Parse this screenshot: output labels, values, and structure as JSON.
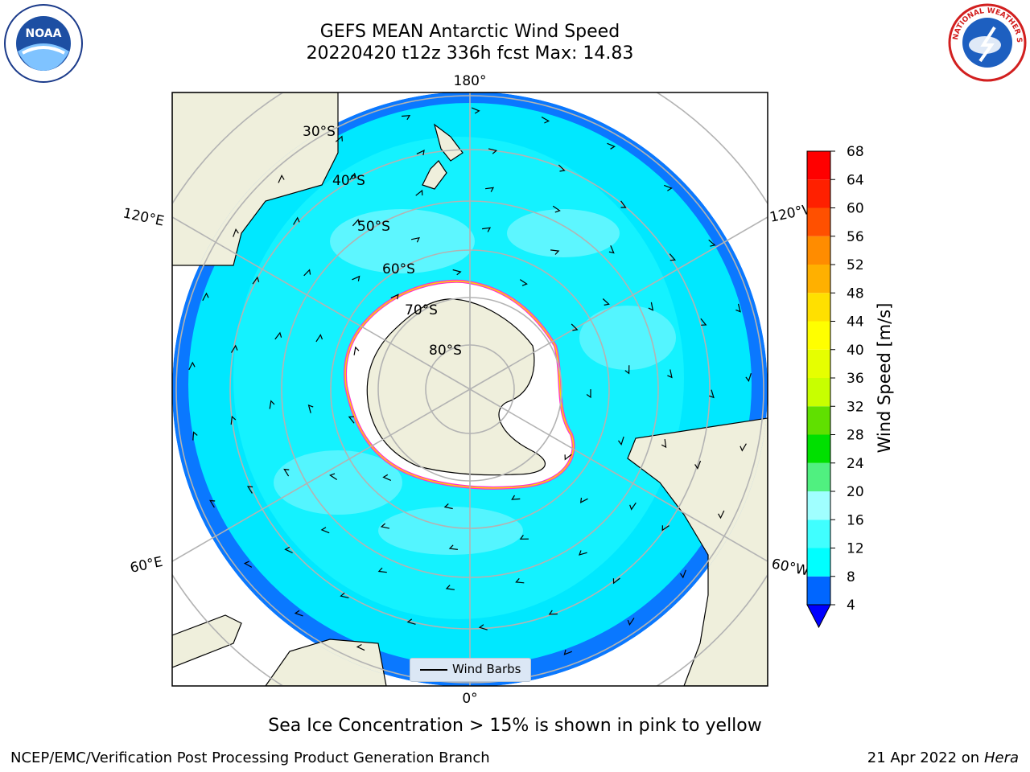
{
  "title": {
    "line1": "GEFS MEAN Antarctic Wind Speed",
    "line2": "20220420 t12z 336h fcst   Max: 14.83"
  },
  "logos": {
    "left": "noaa-logo",
    "right": "national-weather-service-logo",
    "left_text": "NOAA",
    "right_text": "NATIONAL WEATHER SERVICE"
  },
  "map": {
    "projection": "south-polar-stereographic",
    "longitude_labels": {
      "top": "180°",
      "bottom": "0°",
      "upper_left": "120°E",
      "lower_left": "60°E",
      "upper_right": "120°W",
      "lower_right": "60°W"
    },
    "latitude_labels": [
      "30°S",
      "40°S",
      "50°S",
      "60°S",
      "70°S",
      "80°S"
    ],
    "legend": {
      "label": "Wind Barbs"
    }
  },
  "colorbar": {
    "label": "Wind Speed [m/s]",
    "ticks": [
      "4",
      "8",
      "12",
      "16",
      "20",
      "24",
      "28",
      "32",
      "36",
      "40",
      "44",
      "48",
      "52",
      "56",
      "60",
      "64",
      "68"
    ],
    "colors": [
      "#0066ff",
      "#00ffff",
      "#40ffff",
      "#a0ffff",
      "#50f080",
      "#00e000",
      "#60e000",
      "#c8ff00",
      "#e6ff00",
      "#ffff00",
      "#ffe000",
      "#ffb000",
      "#ff8c00",
      "#ff5000",
      "#ff2000",
      "#ff0000"
    ],
    "extend_color": "#0000ff"
  },
  "caption": "Sea Ice Concentration > 15% is shown in pink to yellow",
  "footer": {
    "left": "NCEP/EMC/Verification Post Processing Product Generation Branch",
    "right_date": "21 Apr 2022 on ",
    "right_machine": "Hera"
  }
}
